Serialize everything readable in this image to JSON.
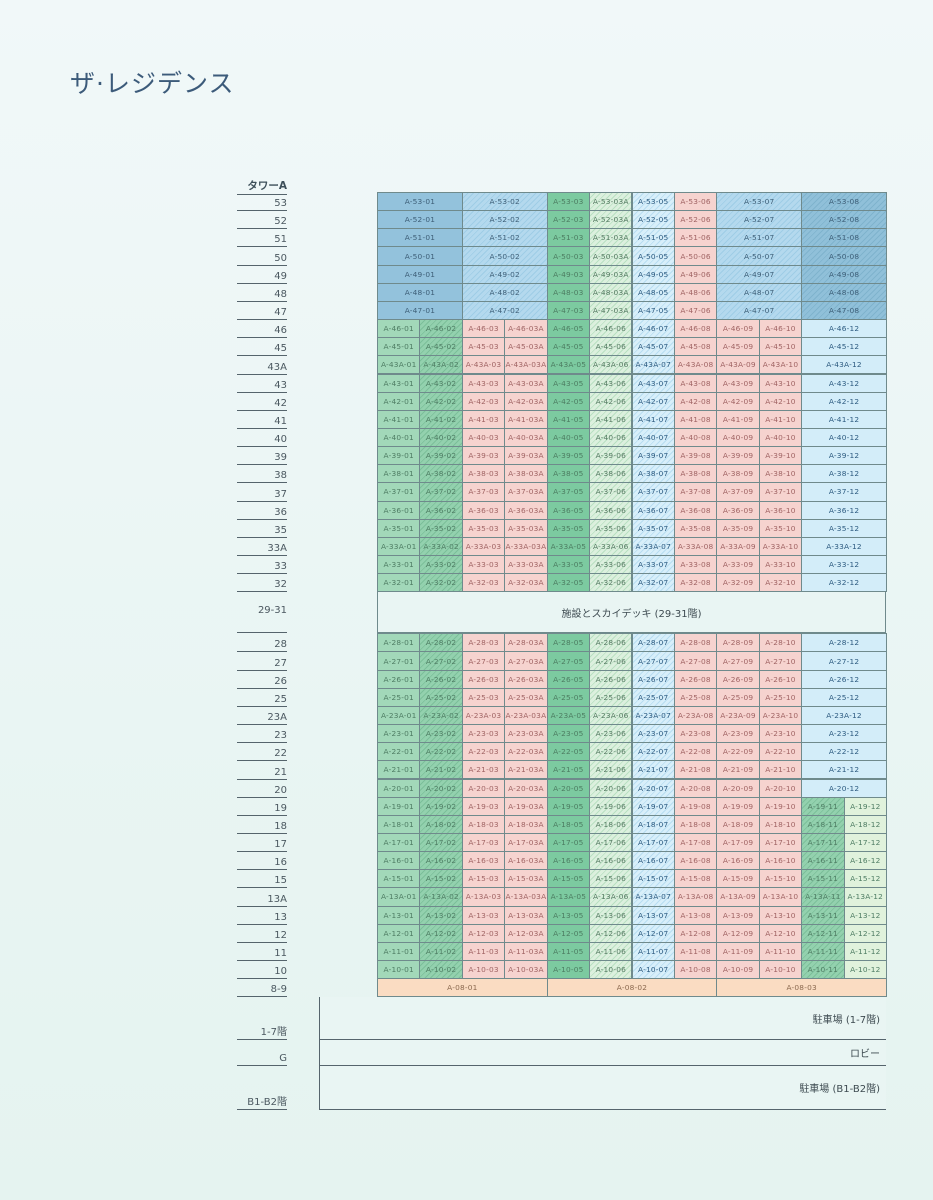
{
  "title": "ザ·レジデンス",
  "tower_label": "タワーA",
  "floors": [
    {
      "label": "53",
      "units": [
        "A-53-01",
        "A-53-02",
        "A-53-03",
        "A-53-03A",
        "A-53-05",
        "A-53-06",
        "A-53-07",
        "A-53-08"
      ]
    },
    {
      "label": "52",
      "units": [
        "A-52-01",
        "A-52-02",
        "A-52-03",
        "A-52-03A",
        "A-52-05",
        "A-52-06",
        "A-52-07",
        "A-52-08"
      ]
    },
    {
      "label": "51",
      "units": [
        "A-51-01",
        "A-51-02",
        "A-51-03",
        "A-51-03A",
        "A-51-05",
        "A-51-06",
        "A-51-07",
        "A-51-08"
      ]
    },
    {
      "label": "50",
      "units": [
        "A-50-01",
        "A-50-02",
        "A-50-03",
        "A-50-03A",
        "A-50-05",
        "A-50-06",
        "A-50-07",
        "A-50-08"
      ]
    },
    {
      "label": "49",
      "units": [
        "A-49-01",
        "A-49-02",
        "A-49-03",
        "A-49-03A",
        "A-49-05",
        "A-49-06",
        "A-49-07",
        "A-49-08"
      ]
    },
    {
      "label": "48",
      "units": [
        "A-48-01",
        "A-48-02",
        "A-48-03",
        "A-48-03A",
        "A-48-05",
        "A-48-06",
        "A-48-07",
        "A-48-08"
      ]
    },
    {
      "label": "47",
      "units": [
        "A-47-01",
        "A-47-02",
        "A-47-03",
        "A-47-03A",
        "A-47-05",
        "A-47-06",
        "A-47-07",
        "A-47-08"
      ]
    },
    {
      "label": "46",
      "units": [
        "A-46-01",
        "A-46-02",
        "A-46-03",
        "A-46-03A",
        "A-46-05",
        "A-46-06",
        "A-46-07",
        "A-46-08",
        "A-46-09",
        "A-46-10",
        "A-46-12"
      ]
    },
    {
      "label": "45",
      "units": [
        "A-45-01",
        "A-45-02",
        "A-45-03",
        "A-45-03A",
        "A-45-05",
        "A-45-06",
        "A-45-07",
        "A-45-08",
        "A-45-09",
        "A-45-10",
        "A-45-12"
      ]
    },
    {
      "label": "43A",
      "units": [
        "A-43A-01",
        "A-43A-02",
        "A-43A-03",
        "A-43A-03A",
        "A-43A-05",
        "A-43A-06",
        "A-43A-07",
        "A-43A-08",
        "A-43A-09",
        "A-43A-10",
        "A-43A-12"
      ]
    },
    {
      "label": "43",
      "units": [
        "A-43-01",
        "A-43-02",
        "A-43-03",
        "A-43-03A",
        "A-43-05",
        "A-43-06",
        "A-43-07",
        "A-43-08",
        "A-43-09",
        "A-43-10",
        "A-43-12"
      ]
    },
    {
      "label": "42",
      "units": [
        "A-42-01",
        "A-42-02",
        "A-42-03",
        "A-42-03A",
        "A-42-05",
        "A-42-06",
        "A-42-07",
        "A-42-08",
        "A-42-09",
        "A-42-10",
        "A-42-12"
      ]
    },
    {
      "label": "41",
      "units": [
        "A-41-01",
        "A-41-02",
        "A-41-03",
        "A-41-03A",
        "A-41-05",
        "A-41-06",
        "A-41-07",
        "A-41-08",
        "A-41-09",
        "A-41-10",
        "A-41-12"
      ]
    },
    {
      "label": "40",
      "units": [
        "A-40-01",
        "A-40-02",
        "A-40-03",
        "A-40-03A",
        "A-40-05",
        "A-40-06",
        "A-40-07",
        "A-40-08",
        "A-40-09",
        "A-40-10",
        "A-40-12"
      ]
    },
    {
      "label": "39",
      "units": [
        "A-39-01",
        "A-39-02",
        "A-39-03",
        "A-39-03A",
        "A-39-05",
        "A-39-06",
        "A-39-07",
        "A-39-08",
        "A-39-09",
        "A-39-10",
        "A-39-12"
      ]
    },
    {
      "label": "38",
      "units": [
        "A-38-01",
        "A-38-02",
        "A-38-03",
        "A-38-03A",
        "A-38-05",
        "A-38-06",
        "A-38-07",
        "A-38-08",
        "A-38-09",
        "A-38-10",
        "A-38-12"
      ]
    },
    {
      "label": "37",
      "units": [
        "A-37-01",
        "A-37-02",
        "A-37-03",
        "A-37-03A",
        "A-37-05",
        "A-37-06",
        "A-37-07",
        "A-37-08",
        "A-37-09",
        "A-37-10",
        "A-37-12"
      ]
    },
    {
      "label": "36",
      "units": [
        "A-36-01",
        "A-36-02",
        "A-36-03",
        "A-36-03A",
        "A-36-05",
        "A-36-06",
        "A-36-07",
        "A-36-08",
        "A-36-09",
        "A-36-10",
        "A-36-12"
      ]
    },
    {
      "label": "35",
      "units": [
        "A-35-01",
        "A-35-02",
        "A-35-03",
        "A-35-03A",
        "A-35-05",
        "A-35-06",
        "A-35-07",
        "A-35-08",
        "A-35-09",
        "A-35-10",
        "A-35-12"
      ]
    },
    {
      "label": "33A",
      "units": [
        "A-33A-01",
        "A-33A-02",
        "A-33A-03",
        "A-33A-03A",
        "A-33A-05",
        "A-33A-06",
        "A-33A-07",
        "A-33A-08",
        "A-33A-09",
        "A-33A-10",
        "A-33A-12"
      ]
    },
    {
      "label": "33",
      "units": [
        "A-33-01",
        "A-33-02",
        "A-33-03",
        "A-33-03A",
        "A-33-05",
        "A-33-06",
        "A-33-07",
        "A-33-08",
        "A-33-09",
        "A-33-10",
        "A-33-12"
      ]
    },
    {
      "label": "32",
      "units": [
        "A-32-01",
        "A-32-02",
        "A-32-03",
        "A-32-03A",
        "A-32-05",
        "A-32-06",
        "A-32-07",
        "A-32-08",
        "A-32-09",
        "A-32-10",
        "A-32-12"
      ]
    },
    {
      "label": "29-31",
      "amenity": "施設とスカイデッキ (29-31階)"
    },
    {
      "label": "28",
      "units": [
        "A-28-01",
        "A-28-02",
        "A-28-03",
        "A-28-03A",
        "A-28-05",
        "A-28-06",
        "A-28-07",
        "A-28-08",
        "A-28-09",
        "A-28-10",
        "A-28-12"
      ]
    },
    {
      "label": "27",
      "units": [
        "A-27-01",
        "A-27-02",
        "A-27-03",
        "A-27-03A",
        "A-27-05",
        "A-27-06",
        "A-27-07",
        "A-27-08",
        "A-27-09",
        "A-27-10",
        "A-27-12"
      ]
    },
    {
      "label": "26",
      "units": [
        "A-26-01",
        "A-26-02",
        "A-26-03",
        "A-26-03A",
        "A-26-05",
        "A-26-06",
        "A-26-07",
        "A-26-08",
        "A-26-09",
        "A-26-10",
        "A-26-12"
      ]
    },
    {
      "label": "25",
      "units": [
        "A-25-01",
        "A-25-02",
        "A-25-03",
        "A-25-03A",
        "A-25-05",
        "A-25-06",
        "A-25-07",
        "A-25-08",
        "A-25-09",
        "A-25-10",
        "A-25-12"
      ]
    },
    {
      "label": "23A",
      "units": [
        "A-23A-01",
        "A-23A-02",
        "A-23A-03",
        "A-23A-03A",
        "A-23A-05",
        "A-23A-06",
        "A-23A-07",
        "A-23A-08",
        "A-23A-09",
        "A-23A-10",
        "A-23A-12"
      ]
    },
    {
      "label": "23",
      "units": [
        "A-23-01",
        "A-23-02",
        "A-23-03",
        "A-23-03A",
        "A-23-05",
        "A-23-06",
        "A-23-07",
        "A-23-08",
        "A-23-09",
        "A-23-10",
        "A-23-12"
      ]
    },
    {
      "label": "22",
      "units": [
        "A-22-01",
        "A-22-02",
        "A-22-03",
        "A-22-03A",
        "A-22-05",
        "A-22-06",
        "A-22-07",
        "A-22-08",
        "A-22-09",
        "A-22-10",
        "A-22-12"
      ]
    },
    {
      "label": "21",
      "units": [
        "A-21-01",
        "A-21-02",
        "A-21-03",
        "A-21-03A",
        "A-21-05",
        "A-21-06",
        "A-21-07",
        "A-21-08",
        "A-21-09",
        "A-21-10",
        "A-21-12"
      ]
    },
    {
      "label": "20",
      "units": [
        "A-20-01",
        "A-20-02",
        "A-20-03",
        "A-20-03A",
        "A-20-05",
        "A-20-06",
        "A-20-07",
        "A-20-08",
        "A-20-09",
        "A-20-10",
        "A-20-12"
      ]
    },
    {
      "label": "19",
      "units": [
        "A-19-01",
        "A-19-02",
        "A-19-03",
        "A-19-03A",
        "A-19-05",
        "A-19-06",
        "A-19-07",
        "A-19-08",
        "A-19-09",
        "A-19-10",
        "A-19-11",
        "A-19-12"
      ]
    },
    {
      "label": "18",
      "units": [
        "A-18-01",
        "A-18-02",
        "A-18-03",
        "A-18-03A",
        "A-18-05",
        "A-18-06",
        "A-18-07",
        "A-18-08",
        "A-18-09",
        "A-18-10",
        "A-18-11",
        "A-18-12"
      ]
    },
    {
      "label": "17",
      "units": [
        "A-17-01",
        "A-17-02",
        "A-17-03",
        "A-17-03A",
        "A-17-05",
        "A-17-06",
        "A-17-07",
        "A-17-08",
        "A-17-09",
        "A-17-10",
        "A-17-11",
        "A-17-12"
      ]
    },
    {
      "label": "16",
      "units": [
        "A-16-01",
        "A-16-02",
        "A-16-03",
        "A-16-03A",
        "A-16-05",
        "A-16-06",
        "A-16-07",
        "A-16-08",
        "A-16-09",
        "A-16-10",
        "A-16-11",
        "A-16-12"
      ]
    },
    {
      "label": "15",
      "units": [
        "A-15-01",
        "A-15-02",
        "A-15-03",
        "A-15-03A",
        "A-15-05",
        "A-15-06",
        "A-15-07",
        "A-15-08",
        "A-15-09",
        "A-15-10",
        "A-15-11",
        "A-15-12"
      ]
    },
    {
      "label": "13A",
      "units": [
        "A-13A-01",
        "A-13A-02",
        "A-13A-03",
        "A-13A-03A",
        "A-13A-05",
        "A-13A-06",
        "A-13A-07",
        "A-13A-08",
        "A-13A-09",
        "A-13A-10",
        "A-13A-11",
        "A-13A-12"
      ]
    },
    {
      "label": "13",
      "units": [
        "A-13-01",
        "A-13-02",
        "A-13-03",
        "A-13-03A",
        "A-13-05",
        "A-13-06",
        "A-13-07",
        "A-13-08",
        "A-13-09",
        "A-13-10",
        "A-13-11",
        "A-13-12"
      ]
    },
    {
      "label": "12",
      "units": [
        "A-12-01",
        "A-12-02",
        "A-12-03",
        "A-12-03A",
        "A-12-05",
        "A-12-06",
        "A-12-07",
        "A-12-08",
        "A-12-09",
        "A-12-10",
        "A-12-11",
        "A-12-12"
      ]
    },
    {
      "label": "11",
      "units": [
        "A-11-01",
        "A-11-02",
        "A-11-03",
        "A-11-03A",
        "A-11-05",
        "A-11-06",
        "A-11-07",
        "A-11-08",
        "A-11-09",
        "A-11-10",
        "A-11-11",
        "A-11-12"
      ]
    },
    {
      "label": "10",
      "units": [
        "A-10-01",
        "A-10-02",
        "A-10-03",
        "A-10-03A",
        "A-10-05",
        "A-10-06",
        "A-10-07",
        "A-10-08",
        "A-10-09",
        "A-10-10",
        "A-10-11",
        "A-10-12"
      ]
    },
    {
      "label": "8-9",
      "units": [
        "A-08-01",
        "A-08-02",
        "A-08-03"
      ]
    }
  ],
  "services": [
    {
      "label": "1-7階",
      "name": "駐車場 (1-7階)"
    },
    {
      "label": "G",
      "name": "ロビー"
    },
    {
      "label": "B1-B2階",
      "name": "駐車場 (B1-B2階)"
    }
  ]
}
